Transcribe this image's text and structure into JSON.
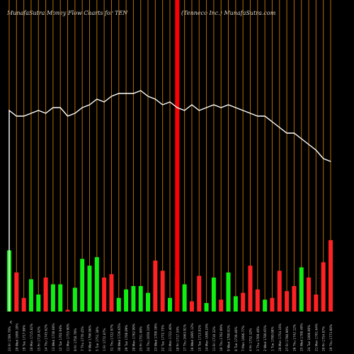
{
  "header": {
    "title_left": "MunafaSutra  Money Flow  Charts for TEN",
    "title_right": "(Tenneco  Inc.) MunafaSutra.com"
  },
  "chart_data": {
    "type": "bar",
    "title": "MunafaSutra  Money Flow  Charts for TEN",
    "subtitle": "(Tenneco  Inc.) MunafaSutra.com",
    "ylim": [
      0,
      100
    ],
    "line_ylim": [
      0,
      100
    ],
    "grid": true,
    "colors": {
      "up": "#11ee11",
      "down": "#ff2222",
      "grid": "#b86b00",
      "line": "#ffffff",
      "background": "#000000",
      "highlight": "#ff0000"
    },
    "categories": [
      "23 Fri 1789.70%",
      "20 Wed 1699.10%",
      "19 Tue 1717.90%",
      "18 Mon 1715.82%",
      "15 Fri 1718.42%",
      "14 Thu 1745.62%",
      "13 Wed 1738.60%",
      "12 Tue 1702.94%",
      "11 Mon 1755.90%",
      "8 Fri 1758.70%",
      "7 Thu 1770.45%",
      "6 Wed 1796.96%",
      "5 Tue 1751.38%",
      "1 Fri 1772.87%",
      "31 Thu 1722.97%",
      "30 Wed 1726.65%",
      "29 Tue 1708.09%",
      "28 Mon 1762.99%",
      "25 Fri 1751.00%",
      "24 Thu 1656.10%",
      "23 Wed 1700.36%",
      "22 Tue 1772.75%",
      "21 Mon 1722.40%",
      "18 Fri 1717.34%",
      "17 Thu 1663.91%",
      "16 Wed 1695.12%",
      "15 Tue 1713.81%",
      "14 Mon 1699.24%",
      "11 Fri 1710.32%",
      "10 Thu 1762.09%",
      "9 Wed 1700.91%",
      "8 Tue 1739.46%",
      "7 Mon 1696.77%",
      "4 Fri 1732.32%",
      "3 Thu 1769.40%",
      "2 Wed 1780.65%",
      "1 Tue 1780.08%",
      "28 Mon 1754.16%",
      "27 Fri 1798.90%",
      "26 Thu 1742.12%",
      "25 Wed 1788.40%",
      "24 Tue 1806.60%",
      "21 Mon 1701.64%",
      "20 Fri 1754.87%",
      "19 Thu 1773.60%"
    ],
    "x_tick_extra": "€",
    "series": [
      {
        "values": [
          1,
          1,
          1,
          1,
          1,
          1,
          1,
          1,
          1,
          1,
          1,
          1,
          1,
          1,
          1,
          1,
          1,
          1,
          1,
          1,
          1,
          1,
          1,
          1,
          1,
          1,
          1,
          1,
          1,
          1,
          1,
          1,
          1,
          1,
          1,
          1,
          1,
          1,
          1,
          1,
          1,
          1,
          1,
          1,
          1
        ]
      }
    ],
    "bar_values": [
      36,
      23,
      8,
      19,
      10,
      20,
      16,
      16,
      1,
      14,
      31,
      27,
      32,
      20,
      22,
      8,
      13,
      15,
      15,
      11,
      30,
      24,
      8,
      21,
      16,
      6,
      21,
      5,
      20,
      7,
      23,
      9,
      11,
      27,
      13,
      7,
      8,
      24,
      12,
      15,
      26,
      20,
      10,
      29,
      42
    ],
    "bar_colors": [
      "up",
      "down",
      "down",
      "up",
      "up",
      "down",
      "up",
      "up",
      "down",
      "up",
      "up",
      "up",
      "up",
      "down",
      "down",
      "up",
      "up",
      "up",
      "up",
      "up",
      "down",
      "down",
      "up",
      "down",
      "up",
      "down",
      "down",
      "up",
      "up",
      "down",
      "up",
      "up",
      "down",
      "down",
      "down",
      "up",
      "down",
      "down",
      "down",
      "down",
      "up",
      "down",
      "down",
      "down",
      "down"
    ],
    "highlight_index": 23,
    "line_values": [
      71,
      69,
      69,
      70,
      71,
      70,
      72,
      72,
      69,
      70,
      72,
      73,
      75,
      74,
      76,
      77,
      77,
      77,
      78,
      76,
      75,
      73,
      74,
      72,
      71,
      73,
      71,
      72,
      73,
      72,
      73,
      72,
      71,
      70,
      69,
      69,
      67,
      65,
      63,
      63,
      61,
      59,
      57,
      54,
      53
    ]
  }
}
